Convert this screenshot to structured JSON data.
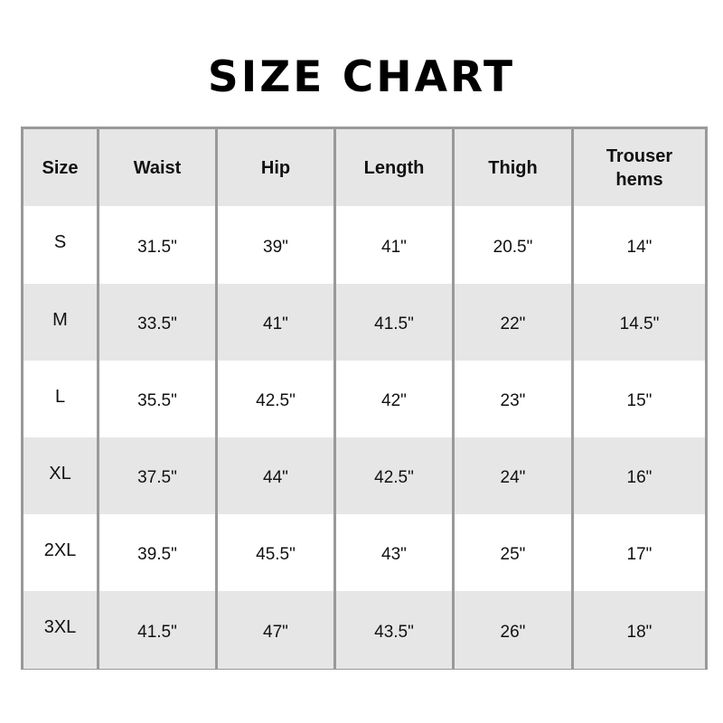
{
  "title": "SIZE CHART",
  "colors": {
    "border": "#999999",
    "header_bg": "#e6e6e6",
    "alt_row_bg": "#e6e6e6"
  },
  "headers": [
    "Size",
    "Waist",
    "Hip",
    "Length",
    "Thigh",
    "Trouser hems"
  ],
  "rows": [
    [
      "S",
      "31.5\"",
      "39\"",
      "41\"",
      "20.5\"",
      "14\""
    ],
    [
      "M",
      "33.5\"",
      "41\"",
      "41.5\"",
      "22\"",
      "14.5\""
    ],
    [
      "L",
      "35.5\"",
      "42.5\"",
      "42\"",
      "23\"",
      "15\""
    ],
    [
      "XL",
      "37.5\"",
      "44\"",
      "42.5\"",
      "24\"",
      "16\""
    ],
    [
      "2XL",
      "39.5\"",
      "45.5\"",
      "43\"",
      "25\"",
      "17\""
    ],
    [
      "3XL",
      "41.5\"",
      "47\"",
      "43.5\"",
      "26\"",
      "18\""
    ]
  ]
}
